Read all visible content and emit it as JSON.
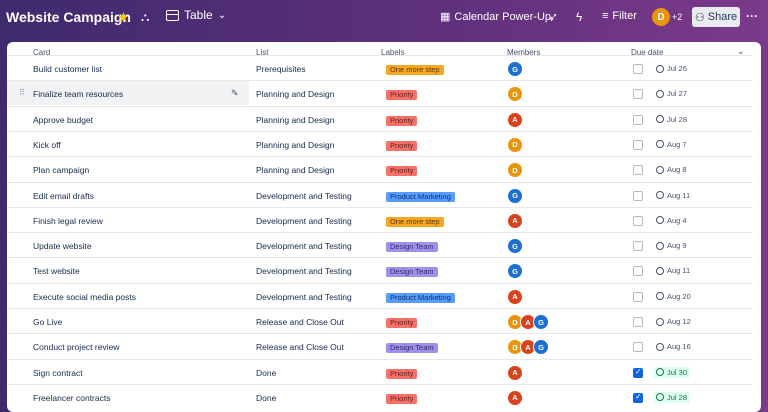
{
  "header": {
    "title": "Website Campaign",
    "view_label": "Table",
    "calendar_label": "Calendar Power-Up",
    "filter_label": "Filter",
    "avatar_initial": "D",
    "extra_members": "+2",
    "share_label": "Share"
  },
  "table": {
    "columns": [
      "Card",
      "List",
      "Labels",
      "Members",
      "Due date"
    ],
    "rows": [
      {
        "card": "Build customer list",
        "list": "Prerequisites",
        "label": "One more step",
        "label_color": "#f5a623",
        "label_text_color": "#5b3a00",
        "members": [
          {
            "i": "G",
            "c": "#1d6fd1"
          }
        ],
        "done": false,
        "due": "Jul 26"
      },
      {
        "card": "Finalize team resources",
        "list": "Planning and Design",
        "label": "Priority",
        "label_color": "#f87168",
        "label_text_color": "#5d1f1a",
        "members": [
          {
            "i": "D",
            "c": "#e8940c"
          }
        ],
        "done": false,
        "due": "Jul 27"
      },
      {
        "card": "Approve budget",
        "list": "Planning and Design",
        "label": "Priority",
        "label_color": "#f87168",
        "label_text_color": "#5d1f1a",
        "members": [
          {
            "i": "A",
            "c": "#d9431c"
          }
        ],
        "done": false,
        "due": "Jul 28"
      },
      {
        "card": "Kick off",
        "list": "Planning and Design",
        "label": "Priority",
        "label_color": "#f87168",
        "label_text_color": "#5d1f1a",
        "members": [
          {
            "i": "D",
            "c": "#e8940c"
          }
        ],
        "done": false,
        "due": "Aug 7"
      },
      {
        "card": "Plan campaign",
        "list": "Planning and Design",
        "label": "Priority",
        "label_color": "#f87168",
        "label_text_color": "#5d1f1a",
        "members": [
          {
            "i": "D",
            "c": "#e8940c"
          }
        ],
        "done": false,
        "due": "Aug 8"
      },
      {
        "card": "Edit email drafts",
        "list": "Development and Testing",
        "label": "Product Marketing",
        "label_color": "#579dff",
        "label_text_color": "#09326c",
        "members": [
          {
            "i": "G",
            "c": "#1d6fd1"
          }
        ],
        "done": false,
        "due": "Aug 11"
      },
      {
        "card": "Finish legal review",
        "list": "Development and Testing",
        "label": "One more step",
        "label_color": "#f5a623",
        "label_text_color": "#5b3a00",
        "members": [
          {
            "i": "A",
            "c": "#d9431c"
          }
        ],
        "done": false,
        "due": "Aug 4"
      },
      {
        "card": "Update website",
        "list": "Development and Testing",
        "label": "Design Team",
        "label_color": "#9f8fef",
        "label_text_color": "#352c63",
        "members": [
          {
            "i": "G",
            "c": "#1d6fd1"
          }
        ],
        "done": false,
        "due": "Aug 9"
      },
      {
        "card": "Test website",
        "list": "Development and Testing",
        "label": "Design Team",
        "label_color": "#9f8fef",
        "label_text_color": "#352c63",
        "members": [
          {
            "i": "G",
            "c": "#1d6fd1"
          }
        ],
        "done": false,
        "due": "Aug 11"
      },
      {
        "card": "Execute social media posts",
        "list": "Development and Testing",
        "label": "Product Marketing",
        "label_color": "#579dff",
        "label_text_color": "#09326c",
        "members": [
          {
            "i": "A",
            "c": "#d9431c"
          }
        ],
        "done": false,
        "due": "Aug 20"
      },
      {
        "card": "Go Live",
        "list": "Release and Close Out",
        "label": "Priority",
        "label_color": "#f87168",
        "label_text_color": "#5d1f1a",
        "members": [
          {
            "i": "D",
            "c": "#e8940c"
          },
          {
            "i": "A",
            "c": "#d9431c"
          },
          {
            "i": "G",
            "c": "#1d6fd1"
          }
        ],
        "done": false,
        "due": "Aug 12"
      },
      {
        "card": "Conduct project review",
        "list": "Release and Close Out",
        "label": "Design Team",
        "label_color": "#9f8fef",
        "label_text_color": "#352c63",
        "members": [
          {
            "i": "D",
            "c": "#e8940c"
          },
          {
            "i": "A",
            "c": "#d9431c"
          },
          {
            "i": "G",
            "c": "#1d6fd1"
          }
        ],
        "done": false,
        "due": "Aug 16"
      },
      {
        "card": "Sign contract",
        "list": "Done",
        "label": "Priority",
        "label_color": "#f87168",
        "label_text_color": "#5d1f1a",
        "members": [
          {
            "i": "A",
            "c": "#d9431c"
          }
        ],
        "done": true,
        "due": "Jul 30"
      },
      {
        "card": "Freelancer contracts",
        "list": "Done",
        "label": "Priority",
        "label_color": "#f87168",
        "label_text_color": "#5d1f1a",
        "members": [
          {
            "i": "A",
            "c": "#d9431c"
          }
        ],
        "done": true,
        "due": "Jul 28"
      }
    ]
  }
}
